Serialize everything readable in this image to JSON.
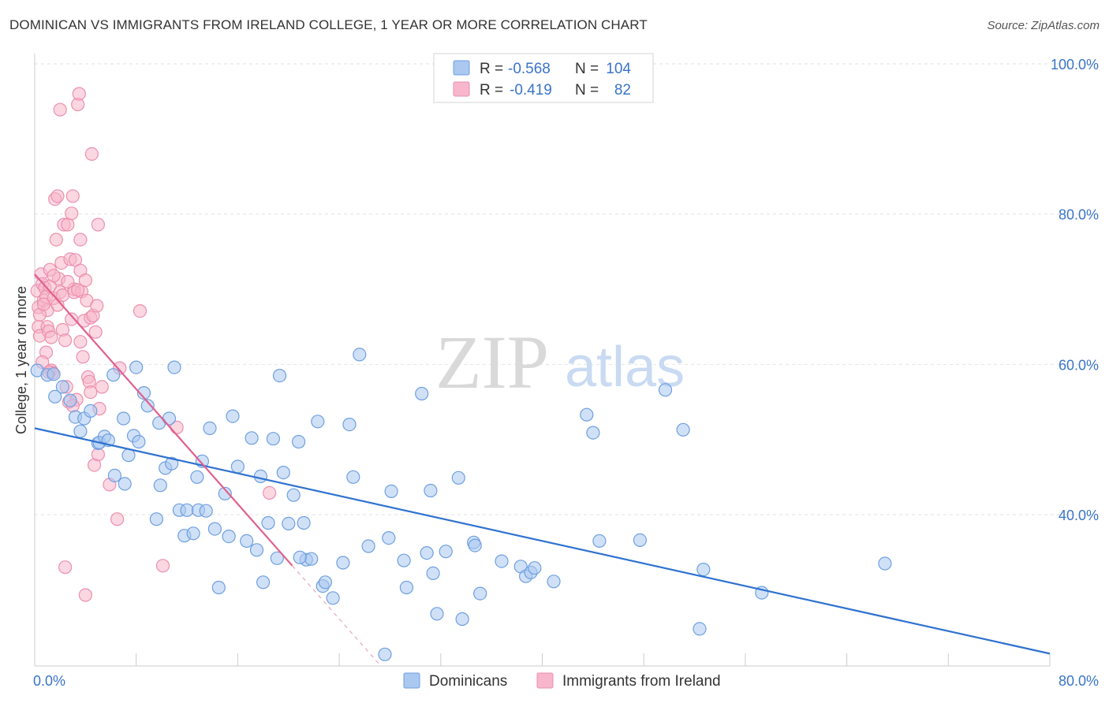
{
  "title": "DOMINICAN VS IMMIGRANTS FROM IRELAND COLLEGE, 1 YEAR OR MORE CORRELATION CHART",
  "source": "Source: ZipAtlas.com",
  "watermark": {
    "zip": "ZIP",
    "atlas": "atlas"
  },
  "colors": {
    "blue_fill": "#aac8f0",
    "blue_stroke": "#6f9fe0",
    "blue_line": "#2f72d0",
    "pink_fill": "#f7b6cb",
    "pink_stroke": "#ec8fae",
    "pink_line": "#e0608e",
    "grid": "#e2e2e2",
    "tick_text": "#3a74c8"
  },
  "chart_data": {
    "type": "scatter",
    "title": "DOMINICAN VS IMMIGRANTS FROM IRELAND COLLEGE, 1 YEAR OR MORE CORRELATION CHART",
    "xlabel": "",
    "ylabel": "College, 1 year or more",
    "xlim": [
      0,
      80
    ],
    "ylim": [
      20,
      103
    ],
    "x_tick_labels": [
      {
        "value": 0,
        "label": "0.0%"
      },
      {
        "value": 80,
        "label": "80.0%"
      }
    ],
    "y_tick_labels": [
      {
        "value": 40,
        "label": "40.0%"
      },
      {
        "value": 60,
        "label": "60.0%"
      },
      {
        "value": 80,
        "label": "80.0%"
      },
      {
        "value": 100,
        "label": "100.0%"
      }
    ],
    "grid": true,
    "legend": [
      {
        "r_label": "R =",
        "r_value": "-0.568",
        "n_label": "N =",
        "n_value": "104"
      },
      {
        "r_label": "R =",
        "r_value": "-0.419",
        "n_label": "N =",
        "n_value": "82"
      }
    ],
    "series": [
      {
        "name": "Dominicans",
        "color": "#aac8f0",
        "trend": {
          "x0": 0,
          "y0": 51.5,
          "x1": 80,
          "y1": 21.5
        },
        "points": [
          [
            0.2,
            59.2
          ],
          [
            1.0,
            58.6
          ],
          [
            1.5,
            58.7
          ],
          [
            1.6,
            55.7
          ],
          [
            2.2,
            57.0
          ],
          [
            2.8,
            55.2
          ],
          [
            3.2,
            53.0
          ],
          [
            3.6,
            51.1
          ],
          [
            3.9,
            52.8
          ],
          [
            4.4,
            53.8
          ],
          [
            5.0,
            49.5
          ],
          [
            5.1,
            49.6
          ],
          [
            5.5,
            50.4
          ],
          [
            5.8,
            49.9
          ],
          [
            6.2,
            58.6
          ],
          [
            6.3,
            45.2
          ],
          [
            7.0,
            52.8
          ],
          [
            7.1,
            44.1
          ],
          [
            7.4,
            47.9
          ],
          [
            7.8,
            50.5
          ],
          [
            8.0,
            59.6
          ],
          [
            8.2,
            49.7
          ],
          [
            8.6,
            56.2
          ],
          [
            8.9,
            54.5
          ],
          [
            9.6,
            39.4
          ],
          [
            9.8,
            52.2
          ],
          [
            10.3,
            46.2
          ],
          [
            10.6,
            52.8
          ],
          [
            10.8,
            46.8
          ],
          [
            11.0,
            59.6
          ],
          [
            11.4,
            40.6
          ],
          [
            11.8,
            37.2
          ],
          [
            12.0,
            40.6
          ],
          [
            12.5,
            37.5
          ],
          [
            12.9,
            40.6
          ],
          [
            13.2,
            47.1
          ],
          [
            13.5,
            40.5
          ],
          [
            13.8,
            51.5
          ],
          [
            14.2,
            38.1
          ],
          [
            14.5,
            30.3
          ],
          [
            15.0,
            42.8
          ],
          [
            15.3,
            37.1
          ],
          [
            15.6,
            53.1
          ],
          [
            16.0,
            46.4
          ],
          [
            16.7,
            36.5
          ],
          [
            17.1,
            50.2
          ],
          [
            17.5,
            35.3
          ],
          [
            17.8,
            45.1
          ],
          [
            18.0,
            31.0
          ],
          [
            18.4,
            38.9
          ],
          [
            18.8,
            50.1
          ],
          [
            19.1,
            34.2
          ],
          [
            19.3,
            58.5
          ],
          [
            19.6,
            45.6
          ],
          [
            20.0,
            38.8
          ],
          [
            20.4,
            42.6
          ],
          [
            20.8,
            49.7
          ],
          [
            21.2,
            38.9
          ],
          [
            21.4,
            34.0
          ],
          [
            21.8,
            34.1
          ],
          [
            22.3,
            52.4
          ],
          [
            22.7,
            30.5
          ],
          [
            22.9,
            31.0
          ],
          [
            23.5,
            28.9
          ],
          [
            24.8,
            52.0
          ],
          [
            25.1,
            45.0
          ],
          [
            25.6,
            61.3
          ],
          [
            26.3,
            35.8
          ],
          [
            27.6,
            21.4
          ],
          [
            27.9,
            36.9
          ],
          [
            28.1,
            43.1
          ],
          [
            29.1,
            33.9
          ],
          [
            29.3,
            30.3
          ],
          [
            30.5,
            56.1
          ],
          [
            30.9,
            34.9
          ],
          [
            31.2,
            43.2
          ],
          [
            31.4,
            32.2
          ],
          [
            31.7,
            26.8
          ],
          [
            32.4,
            35.1
          ],
          [
            33.4,
            44.9
          ],
          [
            33.7,
            26.1
          ],
          [
            34.6,
            36.3
          ],
          [
            34.7,
            35.9
          ],
          [
            35.1,
            29.5
          ],
          [
            36.8,
            33.8
          ],
          [
            38.3,
            33.1
          ],
          [
            38.7,
            31.8
          ],
          [
            39.1,
            32.3
          ],
          [
            39.4,
            32.9
          ],
          [
            40.9,
            31.1
          ],
          [
            43.5,
            53.3
          ],
          [
            44.0,
            50.9
          ],
          [
            44.5,
            36.5
          ],
          [
            47.7,
            36.6
          ],
          [
            49.7,
            56.6
          ],
          [
            51.1,
            51.3
          ],
          [
            52.4,
            24.8
          ],
          [
            52.7,
            32.7
          ],
          [
            57.3,
            29.6
          ],
          [
            67.0,
            33.5
          ],
          [
            20.9,
            34.3
          ],
          [
            9.9,
            43.9
          ],
          [
            24.3,
            33.6
          ],
          [
            12.8,
            45.0
          ]
        ]
      },
      {
        "name": "Immigrants from Ireland",
        "color": "#f7b6cb",
        "trend": {
          "x0": 0,
          "y0": 72.0,
          "x1": 20.3,
          "y1": 33.2,
          "dash_to_x": 27.2,
          "dash_to_y": 20.0
        },
        "points": [
          [
            0.2,
            69.8
          ],
          [
            0.3,
            67.6
          ],
          [
            0.3,
            65.0
          ],
          [
            0.4,
            63.8
          ],
          [
            0.5,
            72.0
          ],
          [
            0.6,
            70.7
          ],
          [
            0.7,
            68.5
          ],
          [
            0.8,
            70.2
          ],
          [
            0.9,
            69.0
          ],
          [
            1.0,
            67.2
          ],
          [
            1.0,
            65.0
          ],
          [
            1.1,
            64.4
          ],
          [
            1.2,
            70.4
          ],
          [
            1.2,
            72.6
          ],
          [
            1.3,
            59.2
          ],
          [
            1.5,
            68.8
          ],
          [
            1.6,
            82.0
          ],
          [
            1.7,
            76.6
          ],
          [
            1.8,
            82.4
          ],
          [
            1.9,
            71.4
          ],
          [
            2.0,
            69.6
          ],
          [
            2.1,
            73.5
          ],
          [
            2.2,
            64.6
          ],
          [
            2.3,
            78.6
          ],
          [
            2.4,
            63.2
          ],
          [
            2.6,
            78.6
          ],
          [
            2.7,
            55.0
          ],
          [
            2.8,
            74.0
          ],
          [
            2.9,
            80.1
          ],
          [
            3.0,
            82.4
          ],
          [
            3.1,
            70.0
          ],
          [
            3.1,
            69.6
          ],
          [
            3.2,
            73.9
          ],
          [
            3.3,
            55.3
          ],
          [
            3.4,
            94.6
          ],
          [
            3.5,
            96.0
          ],
          [
            3.6,
            76.6
          ],
          [
            3.6,
            72.5
          ],
          [
            3.7,
            69.7
          ],
          [
            3.8,
            61.0
          ],
          [
            3.9,
            65.8
          ],
          [
            4.0,
            71.2
          ],
          [
            4.1,
            68.5
          ],
          [
            4.2,
            58.3
          ],
          [
            4.3,
            57.7
          ],
          [
            4.4,
            66.2
          ],
          [
            4.5,
            88.0
          ],
          [
            4.6,
            66.5
          ],
          [
            4.7,
            46.6
          ],
          [
            4.8,
            64.3
          ],
          [
            4.9,
            67.8
          ],
          [
            5.0,
            78.6
          ],
          [
            5.0,
            48.0
          ],
          [
            5.1,
            54.1
          ],
          [
            5.3,
            57.0
          ],
          [
            5.9,
            44.0
          ],
          [
            6.5,
            39.4
          ],
          [
            6.7,
            59.5
          ],
          [
            8.3,
            67.1
          ],
          [
            10.1,
            33.2
          ],
          [
            11.2,
            51.6
          ],
          [
            18.5,
            42.9
          ],
          [
            4.0,
            29.3
          ],
          [
            2.4,
            33.0
          ],
          [
            2.0,
            93.9
          ],
          [
            1.4,
            58.9
          ],
          [
            0.9,
            61.6
          ],
          [
            3.0,
            54.5
          ],
          [
            2.5,
            57.0
          ],
          [
            1.8,
            67.9
          ],
          [
            0.4,
            66.6
          ],
          [
            1.3,
            63.6
          ],
          [
            2.2,
            69.2
          ],
          [
            3.4,
            69.9
          ],
          [
            0.7,
            68.0
          ],
          [
            1.5,
            71.8
          ],
          [
            2.9,
            66.0
          ],
          [
            4.4,
            56.3
          ],
          [
            1.1,
            59.0
          ],
          [
            3.6,
            63.0
          ],
          [
            0.6,
            60.3
          ],
          [
            2.6,
            71.0
          ]
        ]
      }
    ]
  }
}
